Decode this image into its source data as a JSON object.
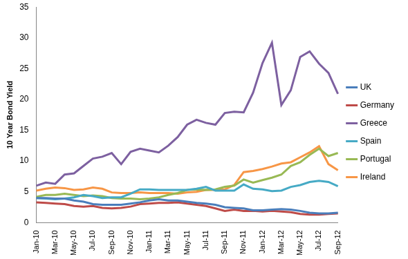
{
  "chart_data": {
    "type": "line",
    "y_label": "10 Year Bond Yield",
    "categories": [
      "Jan-10",
      null,
      "Mar-10",
      null,
      "May-10",
      null,
      "Jul-10",
      null,
      "Sep-10",
      null,
      "Nov-10",
      null,
      "Jan-11",
      null,
      "Mar-11",
      null,
      "May-11",
      null,
      "Jul-11",
      null,
      "Sep-11",
      null,
      "Nov-11",
      null,
      "Jan-12",
      null,
      "Mar-12",
      null,
      "May-12",
      null,
      "Jul-12",
      null,
      "Sep-12"
    ],
    "series": [
      {
        "name": "UK",
        "color": "#4a7ebb",
        "values": [
          4.0,
          4.0,
          3.9,
          3.9,
          3.6,
          3.4,
          3.0,
          2.9,
          2.9,
          2.9,
          3.1,
          3.3,
          3.6,
          3.8,
          3.6,
          3.6,
          3.4,
          3.2,
          3.1,
          2.9,
          2.5,
          2.4,
          2.3,
          2.0,
          2.0,
          2.1,
          2.2,
          2.1,
          1.9,
          1.6,
          1.5,
          1.5,
          1.6
        ]
      },
      {
        "name": "Germany",
        "color": "#be4b48",
        "values": [
          3.3,
          3.2,
          3.1,
          3.0,
          2.7,
          2.6,
          2.7,
          2.4,
          2.3,
          2.4,
          2.6,
          3.0,
          3.1,
          3.2,
          3.2,
          3.3,
          3.1,
          2.9,
          2.7,
          2.3,
          1.9,
          2.1,
          1.9,
          1.9,
          1.8,
          1.9,
          1.8,
          1.7,
          1.4,
          1.3,
          1.3,
          1.4,
          1.5
        ]
      },
      {
        "name": "Greece",
        "color": "#7d60a0",
        "values": [
          6.0,
          6.5,
          6.3,
          7.8,
          8.0,
          9.2,
          10.4,
          10.7,
          11.3,
          9.5,
          11.5,
          12.0,
          11.7,
          11.4,
          12.5,
          13.9,
          15.9,
          16.7,
          16.2,
          15.9,
          17.8,
          18.0,
          17.9,
          21.1,
          25.9,
          29.2,
          19.1,
          21.5,
          26.9,
          27.8,
          25.8,
          24.3,
          20.9
        ]
      },
      {
        "name": "Spain",
        "color": "#46aac5",
        "values": [
          4.0,
          3.9,
          3.8,
          3.9,
          4.1,
          4.5,
          4.3,
          4.0,
          4.1,
          4.1,
          4.7,
          5.4,
          5.4,
          5.3,
          5.3,
          5.3,
          5.3,
          5.5,
          5.8,
          5.2,
          5.2,
          5.2,
          6.2,
          5.5,
          5.4,
          5.1,
          5.2,
          5.8,
          6.1,
          6.6,
          6.8,
          6.6,
          5.9
        ]
      },
      {
        "name": "Portugal",
        "color": "#98b954",
        "values": [
          4.2,
          4.5,
          4.5,
          4.7,
          4.5,
          4.3,
          4.4,
          4.3,
          4.0,
          3.9,
          3.9,
          3.8,
          3.9,
          4.1,
          4.5,
          4.8,
          5.3,
          5.4,
          5.3,
          5.4,
          5.8,
          6.0,
          7.0,
          6.5,
          6.9,
          7.3,
          7.8,
          9.2,
          9.8,
          11.0,
          12.0,
          10.8,
          11.3
        ]
      },
      {
        "name": "Ireland",
        "color": "#f79646",
        "values": [
          5.2,
          5.5,
          5.7,
          5.6,
          5.3,
          5.4,
          5.7,
          5.5,
          4.9,
          4.8,
          4.8,
          4.9,
          4.8,
          4.8,
          4.8,
          4.7,
          4.9,
          5.0,
          5.3,
          5.3,
          5.4,
          6.1,
          8.2,
          8.4,
          8.7,
          9.1,
          9.6,
          9.8,
          10.6,
          11.4,
          12.4,
          9.5,
          8.5
        ]
      }
    ],
    "ylim": [
      0,
      35
    ],
    "yticks": [
      0,
      5,
      10,
      15,
      20,
      25,
      30,
      35
    ],
    "grid": false,
    "legend": "right"
  }
}
